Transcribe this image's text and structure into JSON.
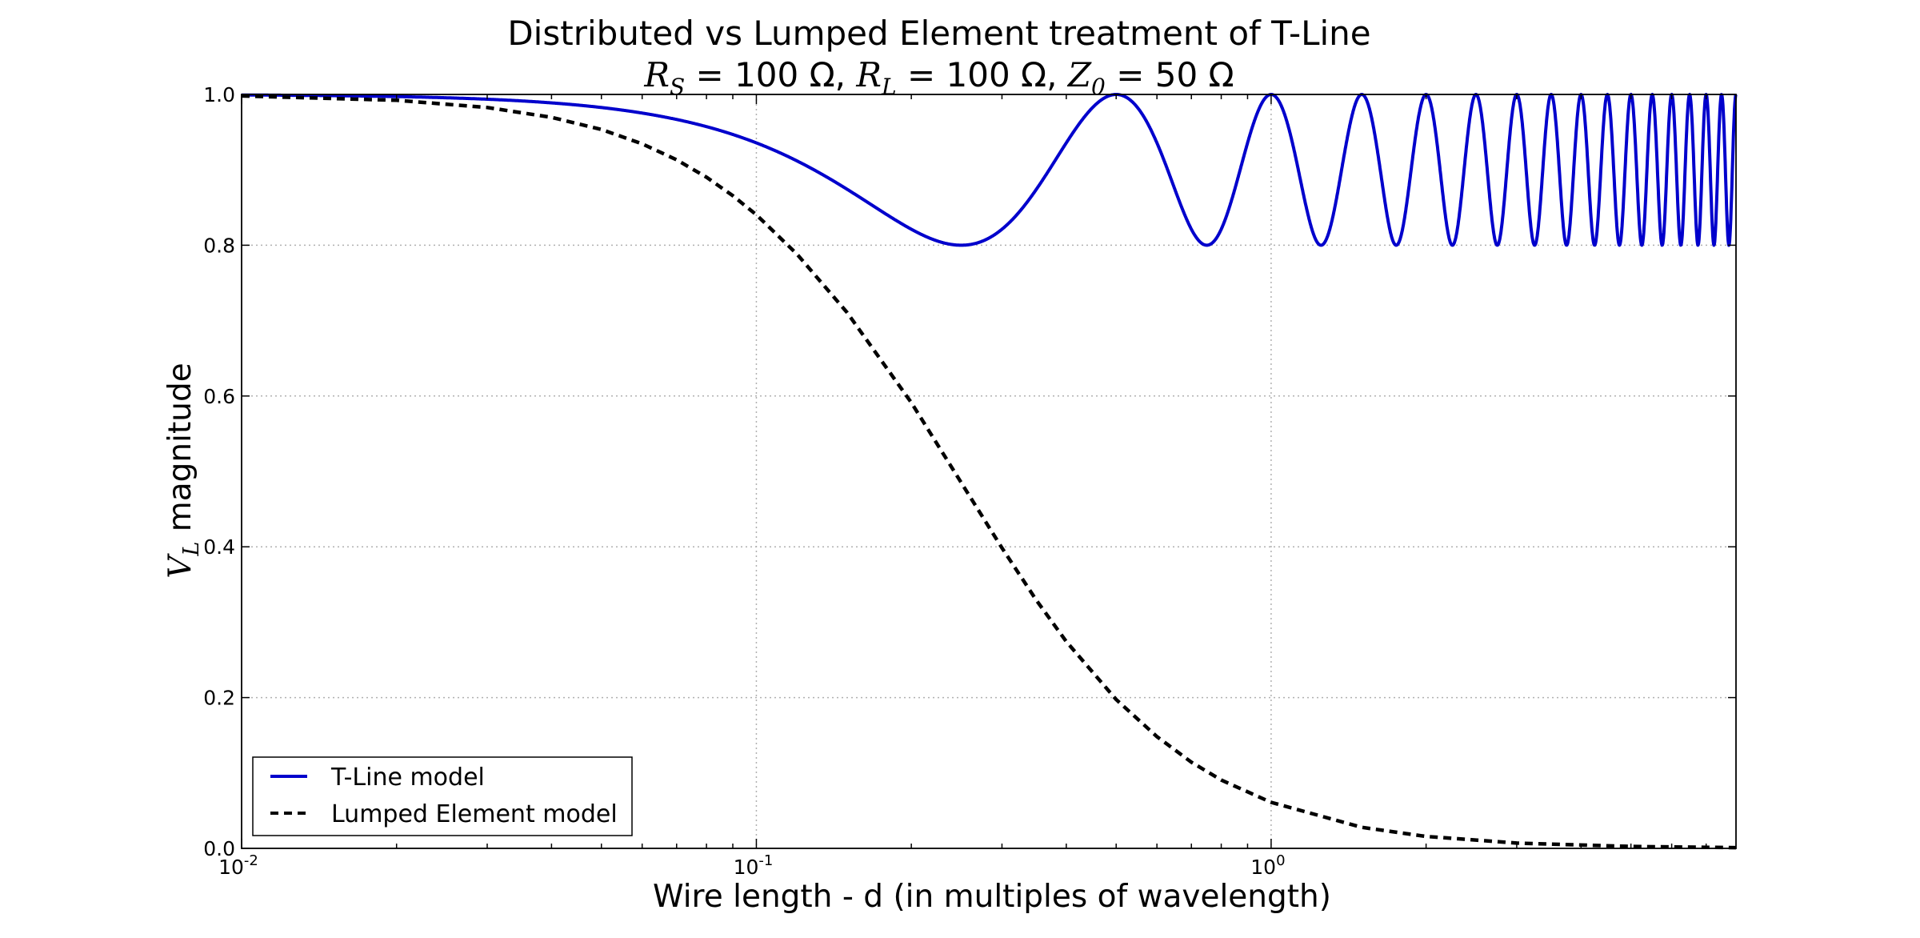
{
  "chart_data": {
    "type": "line",
    "title": "Distributed vs Lumped Element treatment of T-Line",
    "subtitle": {
      "rs_symbol": "R",
      "rs_sub": "S",
      "rs_value": " = 100 Ω, ",
      "rl_symbol": "R",
      "rl_sub": "L",
      "rl_value": " = 100 Ω, ",
      "z0_symbol": "Z",
      "z0_sub": "0",
      "z0_value": " = 50 Ω"
    },
    "xlabel": "Wire length - d (in multiples of wavelength)",
    "ylabel": {
      "symbol": "V",
      "sub": "L",
      "text": " magnitude"
    },
    "x_scale": "log",
    "xlim": [
      0.01,
      8
    ],
    "ylim": [
      0,
      1
    ],
    "x_ticks": [
      {
        "base": "10",
        "exp": "-2",
        "value": 0.01
      },
      {
        "base": "10",
        "exp": "-1",
        "value": 0.1
      },
      {
        "base": "10",
        "exp": "0",
        "value": 1
      }
    ],
    "y_ticks": [
      "0.0",
      "0.2",
      "0.4",
      "0.6",
      "0.8",
      "1.0"
    ],
    "grid": true,
    "legend_position": "lower-left",
    "series": [
      {
        "name": "T-Line model",
        "color": "#0000cc",
        "style": "solid",
        "x": [
          0.01,
          0.02,
          0.03,
          0.04,
          0.05,
          0.06,
          0.07,
          0.08,
          0.1,
          0.125,
          0.15,
          0.175,
          0.2,
          0.25,
          0.3,
          0.35,
          0.4,
          0.45,
          0.5,
          0.55,
          0.625,
          0.75,
          0.875,
          1.0,
          1.125,
          1.25,
          1.375,
          1.5,
          1.625,
          1.75,
          1.875,
          2.0,
          2.25,
          2.5,
          2.75,
          3.0,
          3.5,
          4.0,
          5.0,
          6.0,
          7.0,
          8.0
        ],
        "y": [
          0.9996,
          0.9984,
          0.9965,
          0.9939,
          0.9905,
          0.9865,
          0.9817,
          0.9764,
          0.9638,
          0.9451,
          0.9245,
          0.9034,
          0.8832,
          0.8521,
          0.835,
          0.8305,
          0.8521,
          0.895,
          1.0,
          0.962,
          0.874,
          0.8,
          0.874,
          1.0,
          0.874,
          0.8,
          0.874,
          1.0,
          0.874,
          0.8,
          0.874,
          1.0,
          0.8,
          1.0,
          0.8,
          1.0,
          1.0,
          1.0,
          1.0,
          1.0,
          1.0,
          1.0
        ]
      },
      {
        "name": "Lumped Element model",
        "color": "#000000",
        "style": "dashed",
        "x": [
          0.01,
          0.02,
          0.03,
          0.04,
          0.05,
          0.06,
          0.07,
          0.08,
          0.09,
          0.1,
          0.12,
          0.15,
          0.2,
          0.25,
          0.3,
          0.35,
          0.4,
          0.5,
          0.6,
          0.7,
          0.8,
          1.0,
          1.5,
          2.0,
          3.0,
          5.0,
          8.0
        ],
        "y": [
          0.998,
          0.9922,
          0.9827,
          0.9696,
          0.9535,
          0.9345,
          0.9133,
          0.8902,
          0.8657,
          0.8403,
          0.788,
          0.7108,
          0.5912,
          0.4851,
          0.3984,
          0.3291,
          0.2744,
          0.1975,
          0.1482,
          0.1143,
          0.0907,
          0.061,
          0.0279,
          0.0158,
          0.007,
          0.0025,
          0.001
        ]
      }
    ]
  }
}
